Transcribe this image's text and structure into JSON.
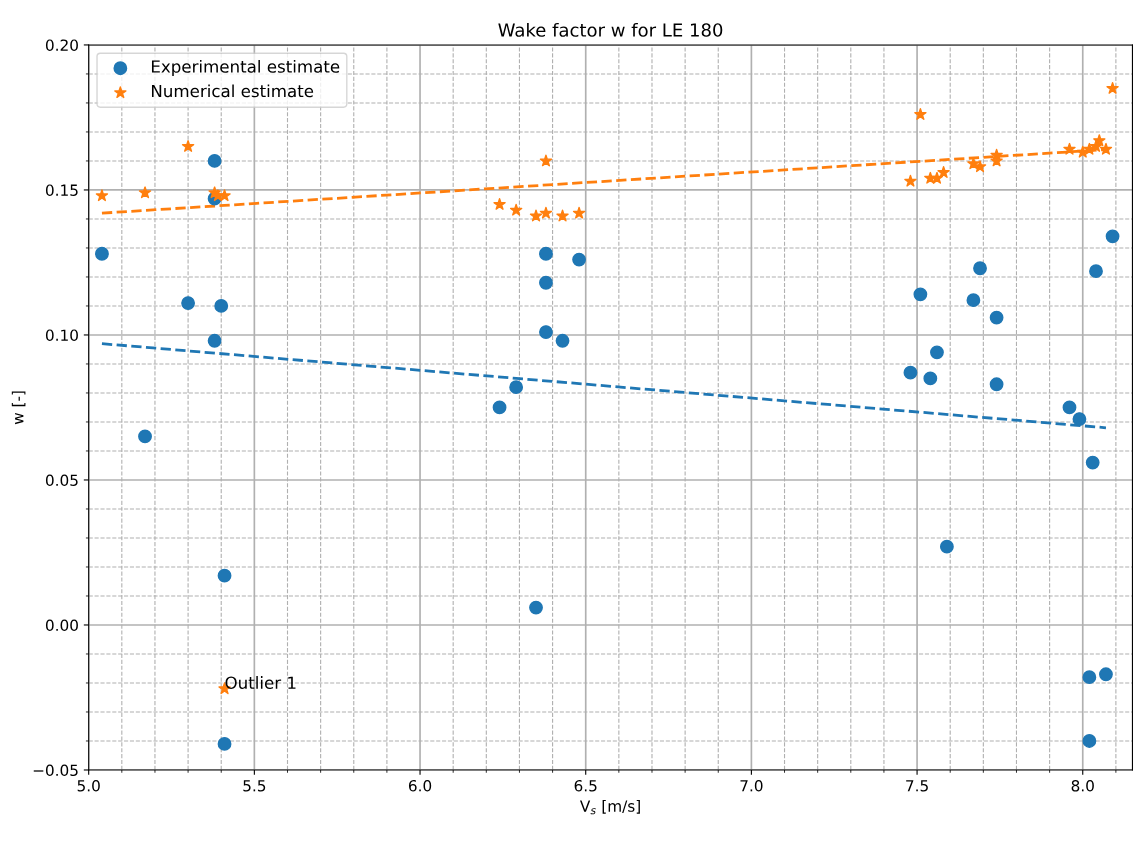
{
  "chart_data": {
    "type": "scatter",
    "title": "Wake factor w for LE 180",
    "xlabel": "V$_{s}$ [m/s]",
    "ylabel": "w [-]",
    "xlim": [
      5.0,
      8.15
    ],
    "ylim": [
      -0.05,
      0.2
    ],
    "xticks": [
      {
        "value": 5.0,
        "label": "5.0"
      },
      {
        "value": 5.1,
        "label": null
      },
      {
        "value": 5.2,
        "label": null
      },
      {
        "value": 5.3,
        "label": null
      },
      {
        "value": 5.4,
        "label": null
      },
      {
        "value": 5.5,
        "label": "5.5"
      },
      {
        "value": 5.6,
        "label": null
      },
      {
        "value": 5.7,
        "label": null
      },
      {
        "value": 5.8,
        "label": null
      },
      {
        "value": 5.9,
        "label": null
      },
      {
        "value": 6.0,
        "label": "6.0"
      },
      {
        "value": 6.1,
        "label": null
      },
      {
        "value": 6.2,
        "label": null
      },
      {
        "value": 6.3,
        "label": null
      },
      {
        "value": 6.4,
        "label": null
      },
      {
        "value": 6.5,
        "label": "6.5"
      },
      {
        "value": 6.6,
        "label": null
      },
      {
        "value": 6.7,
        "label": null
      },
      {
        "value": 6.8,
        "label": null
      },
      {
        "value": 6.9,
        "label": null
      },
      {
        "value": 7.0,
        "label": "7.0"
      },
      {
        "value": 7.1,
        "label": null
      },
      {
        "value": 7.2,
        "label": null
      },
      {
        "value": 7.3,
        "label": null
      },
      {
        "value": 7.4,
        "label": null
      },
      {
        "value": 7.5,
        "label": "7.5"
      },
      {
        "value": 7.6,
        "label": null
      },
      {
        "value": 7.7,
        "label": null
      },
      {
        "value": 7.8,
        "label": null
      },
      {
        "value": 7.9,
        "label": null
      },
      {
        "value": 8.0,
        "label": "8.0"
      },
      {
        "value": 8.1,
        "label": null
      }
    ],
    "yticks": [
      {
        "value": -0.05,
        "label": "−0.05"
      },
      {
        "value": -0.04,
        "label": null
      },
      {
        "value": -0.03,
        "label": null
      },
      {
        "value": -0.02,
        "label": null
      },
      {
        "value": -0.01,
        "label": null
      },
      {
        "value": 0.0,
        "label": "0.00"
      },
      {
        "value": 0.01,
        "label": null
      },
      {
        "value": 0.02,
        "label": null
      },
      {
        "value": 0.03,
        "label": null
      },
      {
        "value": 0.04,
        "label": null
      },
      {
        "value": 0.05,
        "label": "0.05"
      },
      {
        "value": 0.06,
        "label": null
      },
      {
        "value": 0.07,
        "label": null
      },
      {
        "value": 0.08,
        "label": null
      },
      {
        "value": 0.09,
        "label": null
      },
      {
        "value": 0.1,
        "label": "0.10"
      },
      {
        "value": 0.11,
        "label": null
      },
      {
        "value": 0.12,
        "label": null
      },
      {
        "value": 0.13,
        "label": null
      },
      {
        "value": 0.14,
        "label": null
      },
      {
        "value": 0.15,
        "label": "0.15"
      },
      {
        "value": 0.16,
        "label": null
      },
      {
        "value": 0.17,
        "label": null
      },
      {
        "value": 0.18,
        "label": null
      },
      {
        "value": 0.19,
        "label": null
      },
      {
        "value": 0.2,
        "label": "0.20"
      }
    ],
    "grid": true,
    "legend": "top left",
    "annotations": [
      {
        "text": "Outlier 1",
        "x": 5.41,
        "y": -0.022
      }
    ],
    "series": [
      {
        "name": "Experimental estimate",
        "marker": "circle",
        "color": "#1f77b4",
        "x": [
          5.04,
          5.17,
          5.3,
          5.38,
          5.38,
          5.38,
          5.4,
          5.41,
          5.41,
          6.24,
          6.29,
          6.35,
          6.38,
          6.38,
          6.38,
          6.43,
          6.48,
          7.48,
          7.51,
          7.54,
          7.56,
          7.59,
          7.67,
          7.69,
          7.74,
          7.74,
          7.96,
          7.99,
          8.02,
          8.02,
          8.03,
          8.04,
          8.07,
          8.09
        ],
        "values": [
          0.128,
          0.065,
          0.111,
          0.16,
          0.147,
          0.098,
          0.11,
          0.017,
          -0.041,
          0.075,
          0.082,
          0.006,
          0.128,
          0.118,
          0.101,
          0.098,
          0.126,
          0.087,
          0.114,
          0.085,
          0.094,
          0.027,
          0.112,
          0.123,
          0.106,
          0.083,
          0.075,
          0.071,
          -0.04,
          -0.018,
          0.056,
          0.122,
          -0.017,
          0.134
        ]
      },
      {
        "name": "Numerical estimate",
        "marker": "star",
        "color": "#ff7f0e",
        "x": [
          5.04,
          5.17,
          5.3,
          5.38,
          5.39,
          5.41,
          5.41,
          6.24,
          6.29,
          6.35,
          6.38,
          6.38,
          6.43,
          6.48,
          7.48,
          7.51,
          7.54,
          7.56,
          7.58,
          7.67,
          7.69,
          7.74,
          7.74,
          7.96,
          8.0,
          8.02,
          8.04,
          8.05,
          8.07,
          8.09
        ],
        "values": [
          0.148,
          0.149,
          0.165,
          0.149,
          0.148,
          0.148,
          -0.022,
          0.145,
          0.143,
          0.141,
          0.142,
          0.16,
          0.141,
          0.142,
          0.153,
          0.176,
          0.154,
          0.154,
          0.156,
          0.159,
          0.158,
          0.16,
          0.162,
          0.164,
          0.163,
          0.164,
          0.165,
          0.167,
          0.164,
          0.185
        ]
      },
      {
        "type": "line",
        "line_style": "dashed",
        "marker": "none",
        "color": "#1f77b4",
        "x": [
          5.04,
          8.07
        ],
        "values": [
          0.097,
          0.068
        ]
      },
      {
        "type": "line",
        "line_style": "dashed",
        "marker": "none",
        "color": "#ff7f0e",
        "x": [
          5.04,
          8.08
        ],
        "values": [
          0.142,
          0.164
        ]
      }
    ]
  }
}
